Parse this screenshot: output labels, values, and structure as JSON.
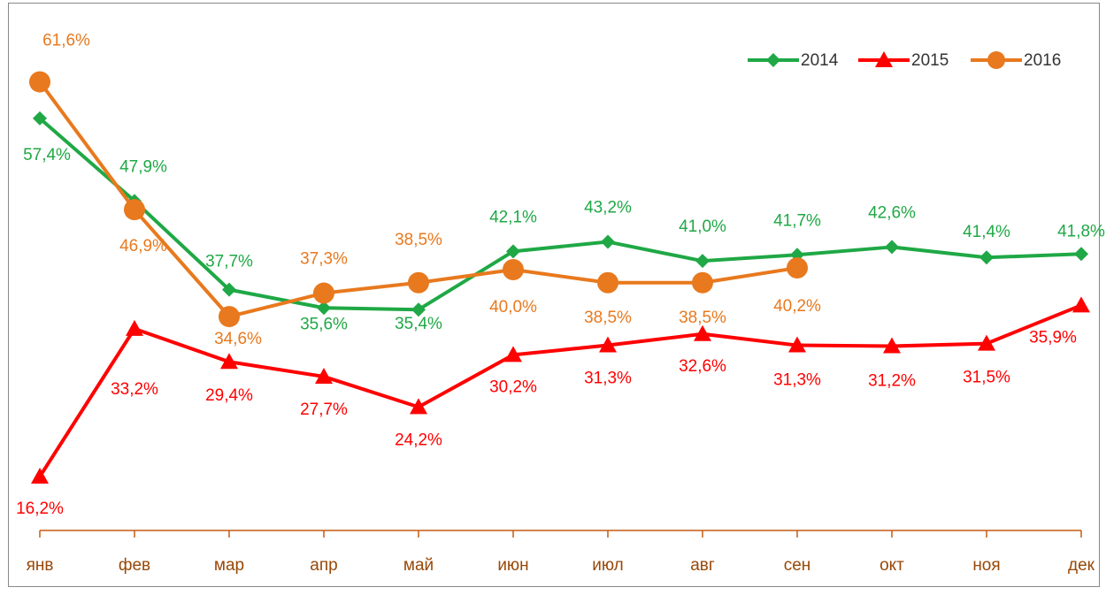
{
  "chart_data": {
    "type": "line",
    "categories": [
      "янв",
      "фев",
      "мар",
      "апр",
      "май",
      "июн",
      "июл",
      "авг",
      "сен",
      "окт",
      "ноя",
      "дек"
    ],
    "series": [
      {
        "name": "2014",
        "color": "#1fa845",
        "marker": "diamond",
        "values": [
          57.4,
          47.9,
          37.7,
          35.6,
          35.4,
          42.1,
          43.2,
          41.0,
          41.7,
          42.6,
          41.4,
          41.8
        ],
        "value_labels": [
          "57,4%",
          "47,9%",
          "37,7%",
          "35,6%",
          "35,4%",
          "42,1%",
          "43,2%",
          "41,0%",
          "41,7%",
          "42,6%",
          "41,4%",
          "41,8%"
        ]
      },
      {
        "name": "2015",
        "color": "#ff0000",
        "marker": "triangle",
        "values": [
          16.2,
          33.2,
          29.4,
          27.7,
          24.2,
          30.2,
          31.3,
          32.6,
          31.3,
          31.2,
          31.5,
          35.9
        ],
        "value_labels": [
          "16,2%",
          "33,2%",
          "29,4%",
          "27,7%",
          "24,2%",
          "30,2%",
          "31,3%",
          "32,6%",
          "31,3%",
          "31,2%",
          "31,5%",
          "35,9%"
        ]
      },
      {
        "name": "2016",
        "color": "#e8791e",
        "marker": "circle",
        "values": [
          61.6,
          46.9,
          34.6,
          37.3,
          38.5,
          40.0,
          38.5,
          38.5,
          40.2,
          null,
          null,
          null
        ],
        "value_labels": [
          "61,6%",
          "46,9%",
          "34,6%",
          "37,3%",
          "38,5%",
          "40,0%",
          "38,5%",
          "38,5%",
          "40,2%",
          null,
          null,
          null
        ]
      }
    ],
    "ylim": [
      10,
      70
    ],
    "legend": "top-right"
  }
}
